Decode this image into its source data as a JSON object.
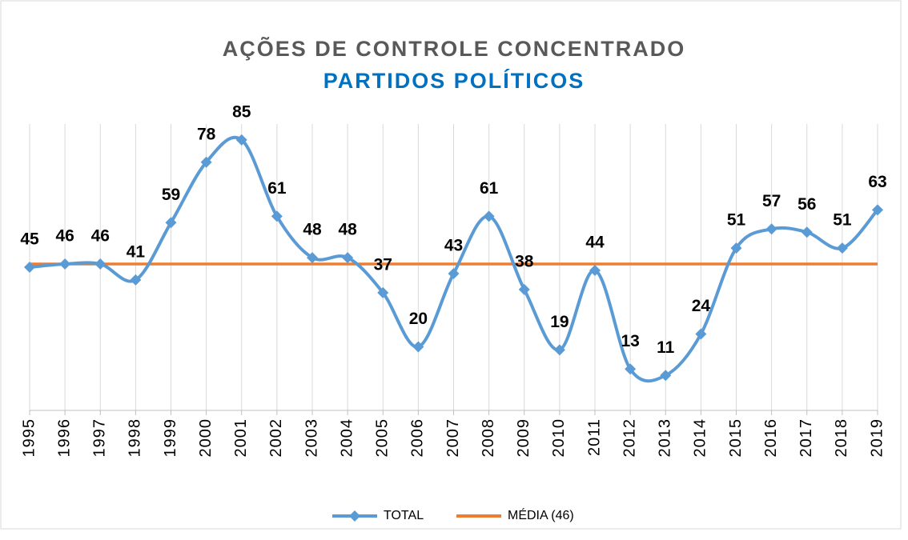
{
  "chart_data": {
    "type": "line",
    "title": "AÇÕES DE CONTROLE CONCENTRADO",
    "subtitle": "PARTIDOS POLÍTICOS",
    "categories": [
      "1995",
      "1996",
      "1997",
      "1998",
      "1999",
      "2000",
      "2001",
      "2002",
      "2003",
      "2004",
      "2005",
      "2006",
      "2007",
      "2008",
      "2009",
      "2010",
      "2011",
      "2012",
      "2013",
      "2014",
      "2015",
      "2016",
      "2017",
      "2018",
      "2019"
    ],
    "series": [
      {
        "name": "TOTAL",
        "color": "#5b9bd5",
        "smooth": true,
        "marker": "diamond",
        "values": [
          45,
          46,
          46,
          41,
          59,
          78,
          85,
          61,
          48,
          48,
          37,
          20,
          43,
          61,
          38,
          19,
          44,
          13,
          11,
          24,
          51,
          57,
          56,
          51,
          63
        ]
      },
      {
        "name": "MÉDIA (46)",
        "color": "#ed7d31",
        "values": [
          46,
          46,
          46,
          46,
          46,
          46,
          46,
          46,
          46,
          46,
          46,
          46,
          46,
          46,
          46,
          46,
          46,
          46,
          46,
          46,
          46,
          46,
          46,
          46,
          46
        ]
      }
    ],
    "ylim": [
      0,
      90
    ],
    "grid": true,
    "legend": "bottom"
  }
}
